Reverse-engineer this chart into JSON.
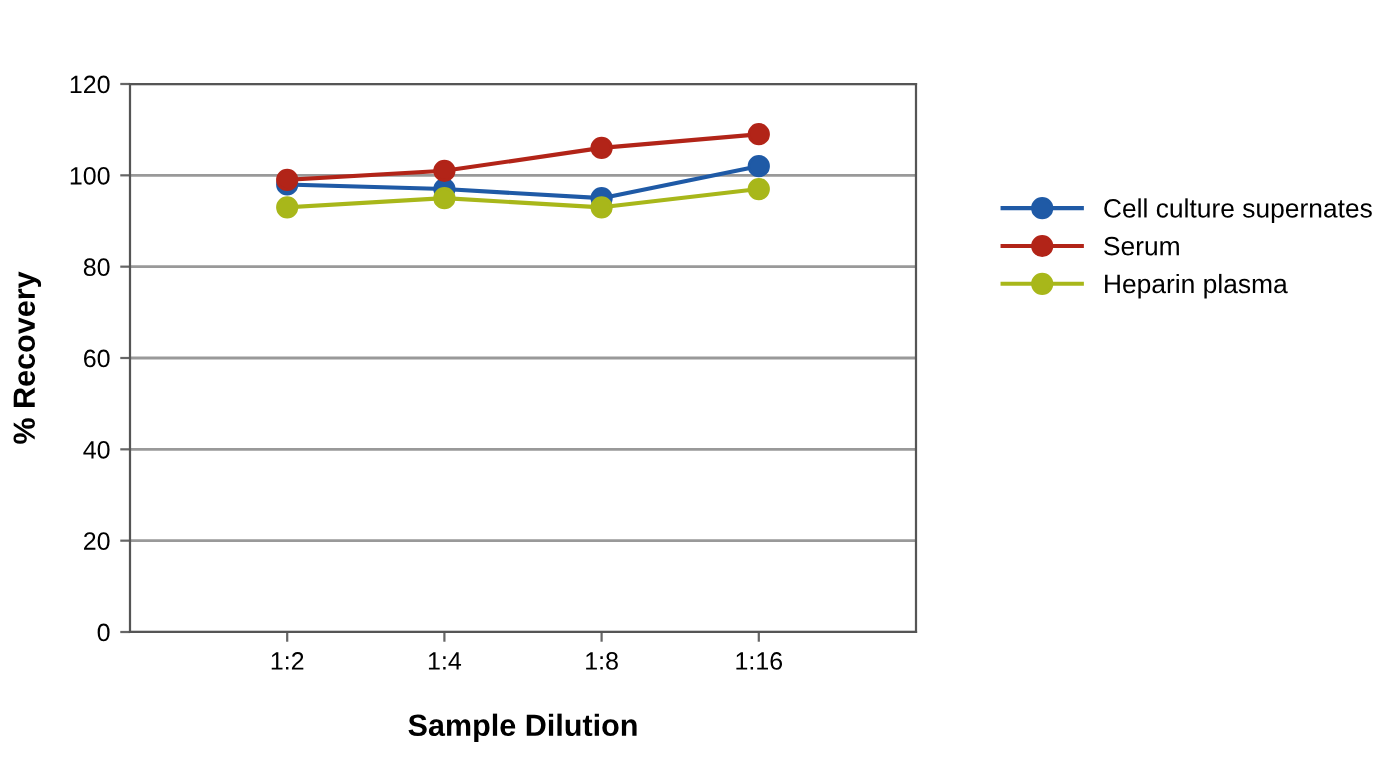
{
  "chart_data": {
    "type": "line",
    "xlabel": "Sample Dilution",
    "ylabel": "% Recovery",
    "categories": [
      "1:2",
      "1:4",
      "1:8",
      "1:16"
    ],
    "series": [
      {
        "name": "Cell culture supernates",
        "color": "#1f5aa6",
        "values": [
          98,
          97,
          95,
          102
        ]
      },
      {
        "name": "Serum",
        "color": "#b22418",
        "values": [
          99,
          101,
          106,
          109
        ]
      },
      {
        "name": "Heparin plasma",
        "color": "#a8b71a",
        "values": [
          93,
          95,
          93,
          97
        ]
      }
    ],
    "ylim": [
      0,
      120
    ],
    "yticks": [
      0,
      20,
      40,
      60,
      80,
      100,
      120
    ],
    "grid": "y",
    "legend": "right",
    "marker": "circle",
    "line_style": "solid"
  }
}
